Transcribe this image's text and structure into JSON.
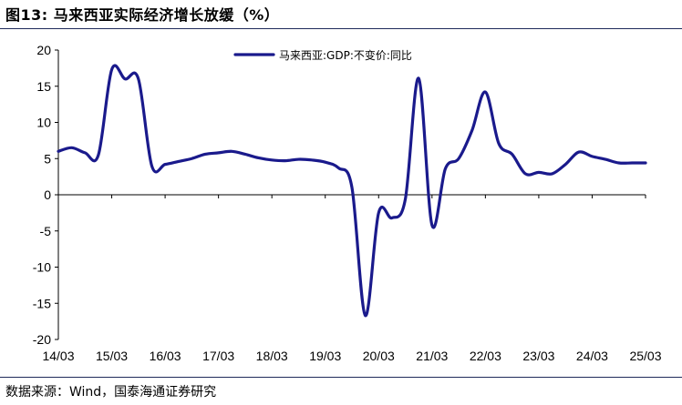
{
  "header": {
    "figure_label": "图13:",
    "title": "马来西亚实际经济增长放缓（%）"
  },
  "footer": {
    "source": "数据来源：Wind，国泰海通证券研究"
  },
  "colors": {
    "series_line": "#1a1a8c",
    "axis": "#000000",
    "rule": "#1f2a5a"
  },
  "chart_data": {
    "type": "line",
    "title": "马来西亚实际经济增长放缓（%）",
    "xlabel": "",
    "ylabel": "",
    "ylim": [
      -20,
      20
    ],
    "yticks": [
      20,
      15,
      10,
      5,
      0,
      -5,
      -10,
      -15,
      -20
    ],
    "ytick_labels": [
      "20",
      "15",
      "10",
      "5",
      "0",
      "-5",
      "-10",
      "-15",
      "-20"
    ],
    "xlim": [
      "2014-03",
      "2025-03"
    ],
    "xticks": [
      "2014-03",
      "2015-03",
      "2016-03",
      "2017-03",
      "2018-03",
      "2019-03",
      "2020-03",
      "2021-03",
      "2022-03",
      "2023-03",
      "2024-03",
      "2025-03"
    ],
    "xtick_labels": [
      "14/03",
      "15/03",
      "16/03",
      "17/03",
      "18/03",
      "19/03",
      "20/03",
      "21/03",
      "22/03",
      "23/03",
      "24/03",
      "25/03"
    ],
    "grid": false,
    "legend_position": "top-center",
    "series": [
      {
        "name": "马来西亚:GDP:不变价:同比",
        "x": [
          "2014-03",
          "2014-06",
          "2014-09",
          "2014-12",
          "2015-03",
          "2015-06",
          "2015-09",
          "2015-12",
          "2016-03",
          "2016-06",
          "2016-09",
          "2016-12",
          "2017-03",
          "2017-06",
          "2017-09",
          "2017-12",
          "2018-03",
          "2018-06",
          "2018-09",
          "2018-12",
          "2019-03",
          "2019-06",
          "2019-09",
          "2019-12",
          "2020-03",
          "2020-06",
          "2020-09",
          "2020-12",
          "2021-03",
          "2021-06",
          "2021-09",
          "2021-12",
          "2022-03",
          "2022-06",
          "2022-09",
          "2022-12",
          "2023-03",
          "2023-06",
          "2023-09",
          "2023-12",
          "2024-03",
          "2024-06",
          "2024-09",
          "2024-12",
          "2025-03"
        ],
        "values": [
          6.0,
          6.5,
          5.8,
          5.5,
          17.3,
          16.0,
          16.0,
          4.0,
          4.2,
          4.6,
          5.0,
          5.6,
          5.8,
          6.0,
          5.6,
          5.1,
          4.8,
          4.7,
          4.9,
          4.8,
          4.5,
          3.7,
          1.0,
          -16.7,
          -2.5,
          -3.2,
          -0.6,
          16.1,
          -4.2,
          3.6,
          5.0,
          8.9,
          14.2,
          7.1,
          5.6,
          2.9,
          3.1,
          2.9,
          4.2,
          5.9,
          5.3,
          4.9,
          4.4,
          4.4,
          4.4
        ]
      }
    ]
  }
}
